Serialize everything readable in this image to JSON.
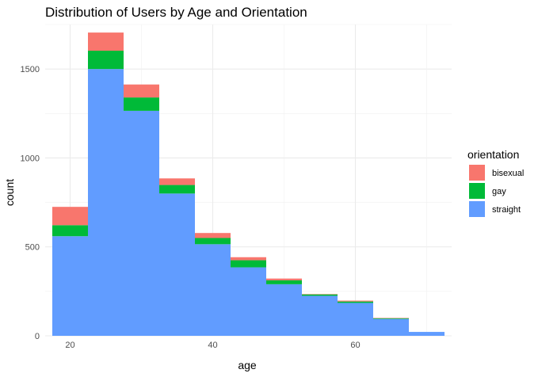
{
  "chart_data": {
    "type": "bar",
    "stacked": true,
    "title": "Distribution of Users by Age and Orientation",
    "xlabel": "age",
    "ylabel": "count",
    "xlim": [
      16.5,
      73.5
    ],
    "ylim": [
      0,
      1750
    ],
    "x_ticks": [
      20,
      40,
      60
    ],
    "y_ticks": [
      0,
      500,
      1000,
      1500
    ],
    "grid": true,
    "legend": {
      "title": "orientation",
      "position": "right"
    },
    "bin_width": 5,
    "bins": [
      20,
      25,
      30,
      35,
      40,
      45,
      50,
      55,
      60,
      65,
      70
    ],
    "series": [
      {
        "name": "straight",
        "color": "#619CFF",
        "values": [
          560,
          1500,
          1265,
          800,
          515,
          385,
          290,
          225,
          185,
          95,
          22
        ]
      },
      {
        "name": "gay",
        "color": "#00BA38",
        "values": [
          62,
          103,
          75,
          48,
          35,
          40,
          22,
          8,
          8,
          4,
          0
        ]
      },
      {
        "name": "bisexual",
        "color": "#F8766D",
        "values": [
          103,
          102,
          73,
          37,
          28,
          17,
          10,
          2,
          5,
          2,
          0
        ]
      }
    ]
  }
}
